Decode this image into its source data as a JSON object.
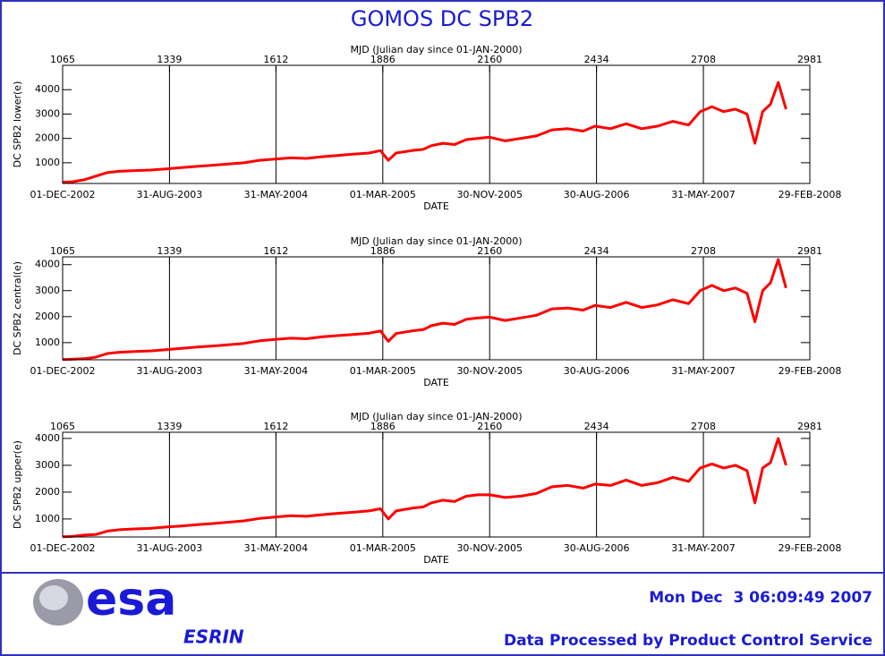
{
  "title": "GOMOS DC SPB2",
  "footer": {
    "logo": "esa",
    "site": "ESRIN",
    "timestamp": "Mon Dec  3 06:09:49 2007",
    "credit": "Data Processed by Product Control Service"
  },
  "chart_data": [
    {
      "type": "line",
      "top_axis_label": "MJD (Julian day since 01-JAN-2000)",
      "x_label": "DATE",
      "y_label": "DC SPB2 lower(e)",
      "xlim": [
        1065,
        2981
      ],
      "ylim": [
        150,
        5000
      ],
      "grid": true,
      "top_xticks": [
        1065,
        1339,
        1612,
        1886,
        2160,
        2434,
        2708,
        2981
      ],
      "xticks": [
        {
          "value": 1065,
          "label": "01-DEC-2002"
        },
        {
          "value": 1339,
          "label": "31-AUG-2003"
        },
        {
          "value": 1612,
          "label": "31-MAY-2004"
        },
        {
          "value": 1886,
          "label": "01-MAR-2005"
        },
        {
          "value": 2160,
          "label": "30-NOV-2005"
        },
        {
          "value": 2434,
          "label": "30-AUG-2006"
        },
        {
          "value": 2708,
          "label": "31-MAY-2007"
        },
        {
          "value": 2981,
          "label": "29-FEB-2008"
        }
      ],
      "yticks": [
        1000,
        2000,
        3000,
        4000
      ],
      "x": [
        1065,
        1090,
        1120,
        1150,
        1180,
        1210,
        1250,
        1290,
        1330,
        1370,
        1410,
        1450,
        1490,
        1530,
        1570,
        1610,
        1650,
        1690,
        1730,
        1770,
        1810,
        1850,
        1880,
        1900,
        1920,
        1960,
        1990,
        2010,
        2040,
        2070,
        2100,
        2130,
        2160,
        2200,
        2240,
        2280,
        2320,
        2360,
        2400,
        2430,
        2470,
        2510,
        2550,
        2590,
        2630,
        2670,
        2700,
        2730,
        2760,
        2790,
        2820,
        2840,
        2860,
        2880,
        2900,
        2920
      ],
      "series": [
        {
          "color": "#ff0000",
          "values": [
            200,
            220,
            300,
            450,
            600,
            650,
            680,
            700,
            750,
            800,
            850,
            900,
            950,
            1000,
            1100,
            1150,
            1200,
            1180,
            1250,
            1300,
            1350,
            1400,
            1500,
            1100,
            1400,
            1500,
            1550,
            1700,
            1800,
            1750,
            1950,
            2000,
            2050,
            1900,
            2000,
            2100,
            2350,
            2400,
            2300,
            2500,
            2400,
            2600,
            2400,
            2500,
            2700,
            2550,
            3100,
            3300,
            3100,
            3200,
            3000,
            1800,
            3100,
            3400,
            4300,
            3200
          ]
        }
      ]
    },
    {
      "type": "line",
      "top_axis_label": "MJD (Julian day since 01-JAN-2000)",
      "x_label": "DATE",
      "y_label": "DC SPB2 central(e)",
      "xlim": [
        1065,
        2981
      ],
      "ylim": [
        340,
        4300
      ],
      "grid": true,
      "top_xticks": [
        1065,
        1339,
        1612,
        1886,
        2160,
        2434,
        2708,
        2981
      ],
      "xticks": [
        {
          "value": 1065,
          "label": "01-DEC-2002"
        },
        {
          "value": 1339,
          "label": "31-AUG-2003"
        },
        {
          "value": 1612,
          "label": "31-MAY-2004"
        },
        {
          "value": 1886,
          "label": "01-MAR-2005"
        },
        {
          "value": 2160,
          "label": "30-NOV-2005"
        },
        {
          "value": 2434,
          "label": "30-AUG-2006"
        },
        {
          "value": 2708,
          "label": "31-MAY-2007"
        },
        {
          "value": 2981,
          "label": "29-FEB-2008"
        }
      ],
      "yticks": [
        1000,
        2000,
        3000,
        4000
      ],
      "x": [
        1065,
        1090,
        1120,
        1150,
        1180,
        1210,
        1250,
        1290,
        1330,
        1370,
        1410,
        1450,
        1490,
        1530,
        1570,
        1610,
        1650,
        1690,
        1730,
        1770,
        1810,
        1850,
        1880,
        1900,
        1920,
        1960,
        1990,
        2010,
        2040,
        2070,
        2100,
        2130,
        2160,
        2200,
        2240,
        2280,
        2320,
        2360,
        2400,
        2430,
        2470,
        2510,
        2550,
        2590,
        2630,
        2670,
        2700,
        2730,
        2760,
        2790,
        2820,
        2840,
        2860,
        2880,
        2900,
        2920
      ],
      "series": [
        {
          "color": "#ff0000",
          "values": [
            350,
            360,
            380,
            440,
            580,
            630,
            660,
            680,
            730,
            780,
            830,
            870,
            920,
            970,
            1070,
            1120,
            1170,
            1150,
            1220,
            1270,
            1310,
            1360,
            1450,
            1050,
            1350,
            1450,
            1500,
            1650,
            1750,
            1700,
            1900,
            1950,
            1980,
            1850,
            1950,
            2050,
            2300,
            2330,
            2250,
            2430,
            2350,
            2550,
            2350,
            2450,
            2650,
            2500,
            3000,
            3200,
            3000,
            3100,
            2900,
            1800,
            3000,
            3300,
            4200,
            3100
          ]
        }
      ]
    },
    {
      "type": "line",
      "top_axis_label": "MJD (Julian day since 01-JAN-2000)",
      "x_label": "DATE",
      "y_label": "DC SPB2 upper(e)",
      "xlim": [
        1065,
        2981
      ],
      "ylim": [
        330,
        4230
      ],
      "grid": true,
      "top_xticks": [
        1065,
        1339,
        1612,
        1886,
        2160,
        2434,
        2708,
        2981
      ],
      "xticks": [
        {
          "value": 1065,
          "label": "01-DEC-2002"
        },
        {
          "value": 1339,
          "label": "31-AUG-2003"
        },
        {
          "value": 1612,
          "label": "31-MAY-2004"
        },
        {
          "value": 1886,
          "label": "01-MAR-2005"
        },
        {
          "value": 2160,
          "label": "30-NOV-2005"
        },
        {
          "value": 2434,
          "label": "30-AUG-2006"
        },
        {
          "value": 2708,
          "label": "31-MAY-2007"
        },
        {
          "value": 2981,
          "label": "29-FEB-2008"
        }
      ],
      "yticks": [
        1000,
        2000,
        3000,
        4000
      ],
      "x": [
        1065,
        1090,
        1120,
        1150,
        1180,
        1210,
        1250,
        1290,
        1330,
        1370,
        1410,
        1450,
        1490,
        1530,
        1570,
        1610,
        1650,
        1690,
        1730,
        1770,
        1810,
        1850,
        1880,
        1900,
        1920,
        1960,
        1990,
        2010,
        2040,
        2070,
        2100,
        2130,
        2160,
        2200,
        2240,
        2280,
        2320,
        2360,
        2400,
        2430,
        2470,
        2510,
        2550,
        2590,
        2630,
        2670,
        2700,
        2730,
        2760,
        2790,
        2820,
        2840,
        2860,
        2880,
        2900,
        2920
      ],
      "series": [
        {
          "color": "#ff0000",
          "values": [
            340,
            350,
            400,
            420,
            550,
            600,
            630,
            650,
            700,
            740,
            790,
            830,
            880,
            930,
            1020,
            1070,
            1120,
            1100,
            1160,
            1210,
            1250,
            1300,
            1380,
            1000,
            1300,
            1400,
            1450,
            1600,
            1700,
            1650,
            1850,
            1900,
            1900,
            1800,
            1850,
            1950,
            2200,
            2250,
            2150,
            2300,
            2250,
            2450,
            2250,
            2350,
            2550,
            2400,
            2900,
            3050,
            2900,
            3000,
            2800,
            1600,
            2900,
            3100,
            4000,
            3000
          ]
        }
      ]
    }
  ]
}
